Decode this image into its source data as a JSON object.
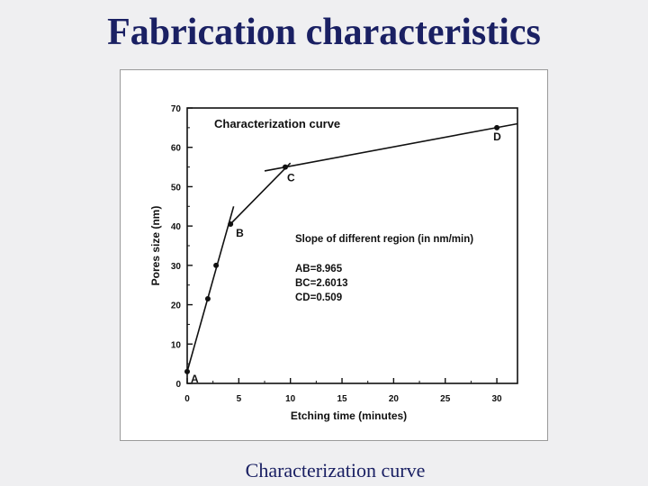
{
  "slide": {
    "title": "Fabrication characteristics",
    "caption": "Characterization curve"
  },
  "chart_data": {
    "type": "line",
    "title": "Characterization curve",
    "xlabel": "Etching time (minutes)",
    "ylabel": "Pores size (nm)",
    "xlim": [
      0,
      32
    ],
    "ylim": [
      0,
      70
    ],
    "xticks": [
      0,
      5,
      10,
      15,
      20,
      25,
      30
    ],
    "yticks": [
      0,
      10,
      20,
      30,
      40,
      50,
      60,
      70
    ],
    "grid": false,
    "points": [
      {
        "x": 0,
        "y": 3,
        "label": "A"
      },
      {
        "x": 2,
        "y": 21.5,
        "label": ""
      },
      {
        "x": 2.8,
        "y": 30,
        "label": ""
      },
      {
        "x": 4.2,
        "y": 40.5,
        "label": "B"
      },
      {
        "x": 9.5,
        "y": 55,
        "label": "C"
      },
      {
        "x": 30,
        "y": 65,
        "label": "D"
      }
    ],
    "fit_lines": [
      {
        "name": "AB",
        "from": [
          0,
          3
        ],
        "to": [
          4.5,
          45
        ]
      },
      {
        "name": "BC",
        "from": [
          4,
          40
        ],
        "to": [
          10,
          56
        ]
      },
      {
        "name": "CD",
        "from": [
          7.5,
          54
        ],
        "to": [
          32,
          66
        ]
      }
    ],
    "annotation": {
      "heading": "Slope of different region (in nm/min)",
      "lines": [
        "AB=8.965",
        "BC=2.6013",
        "CD=0.509"
      ]
    },
    "colors": {
      "ink": "#111111"
    }
  }
}
